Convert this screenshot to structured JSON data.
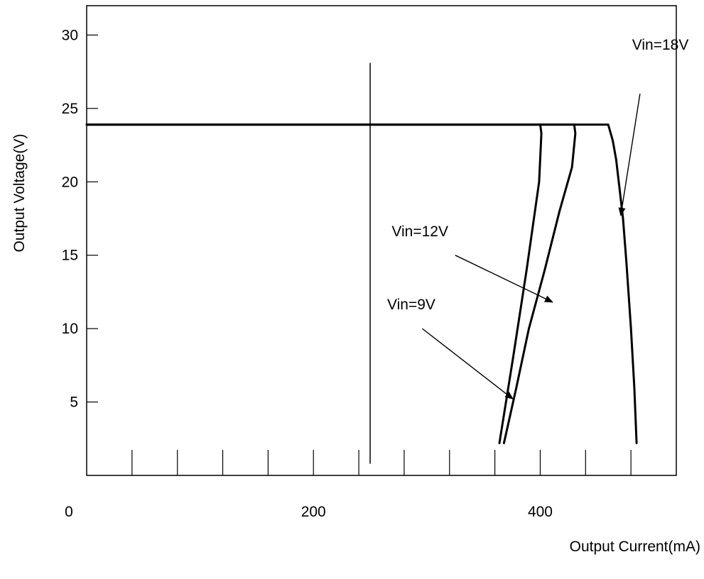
{
  "chart_data": {
    "type": "line",
    "xlabel": "Output Current(mA)",
    "ylabel": "Output Voltage(V)",
    "xlim": [
      0,
      520
    ],
    "ylim": [
      0,
      32
    ],
    "x_tick_labels": [
      {
        "value": 0,
        "label": "0"
      },
      {
        "value": 200,
        "label": "200"
      },
      {
        "value": 400,
        "label": "400"
      }
    ],
    "x_minor_ticks": [
      40,
      80,
      120,
      160,
      200,
      240,
      280,
      320,
      360,
      400,
      440,
      480
    ],
    "y_ticks": [
      5,
      10,
      15,
      20,
      25,
      30
    ],
    "grid": false,
    "reference_line": {
      "x": 250,
      "y_range": [
        0.8,
        28.1
      ]
    },
    "series": [
      {
        "name": "Vin=9V",
        "x": [
          0,
          400,
          401,
          399,
          388,
          376,
          364
        ],
        "y": [
          23.9,
          23.9,
          23.3,
          20.0,
          14.0,
          8.0,
          2.2
        ]
      },
      {
        "name": "Vin=12V",
        "x": [
          0,
          430,
          431,
          428,
          417,
          404,
          390,
          379,
          368
        ],
        "y": [
          23.9,
          23.9,
          23.3,
          21.0,
          18.0,
          14.0,
          10.0,
          6.0,
          2.2
        ]
      },
      {
        "name": "Vin=18V",
        "x": [
          0,
          460,
          464,
          467,
          470,
          473,
          476,
          480,
          483,
          485
        ],
        "y": [
          23.9,
          23.9,
          22.8,
          21.5,
          19.5,
          17.5,
          14.5,
          10.0,
          6.0,
          2.2
        ]
      }
    ],
    "annotations": [
      {
        "text": "Vin=18V",
        "series": "Vin=18V",
        "label_at": [
          481,
          29.0
        ],
        "arrow_from": [
          488,
          26.0
        ],
        "arrow_to": [
          471,
          17.7
        ]
      },
      {
        "text": "Vin=12V",
        "series": "Vin=12V",
        "label_at": [
          269,
          16.3
        ],
        "arrow_from": [
          325,
          15.0
        ],
        "arrow_to": [
          411,
          11.8
        ]
      },
      {
        "text": "Vin=9V",
        "series": "Vin=9V",
        "label_at": [
          265,
          11.3
        ],
        "arrow_from": [
          296,
          10.0
        ],
        "arrow_to": [
          376,
          5.2
        ]
      }
    ]
  }
}
